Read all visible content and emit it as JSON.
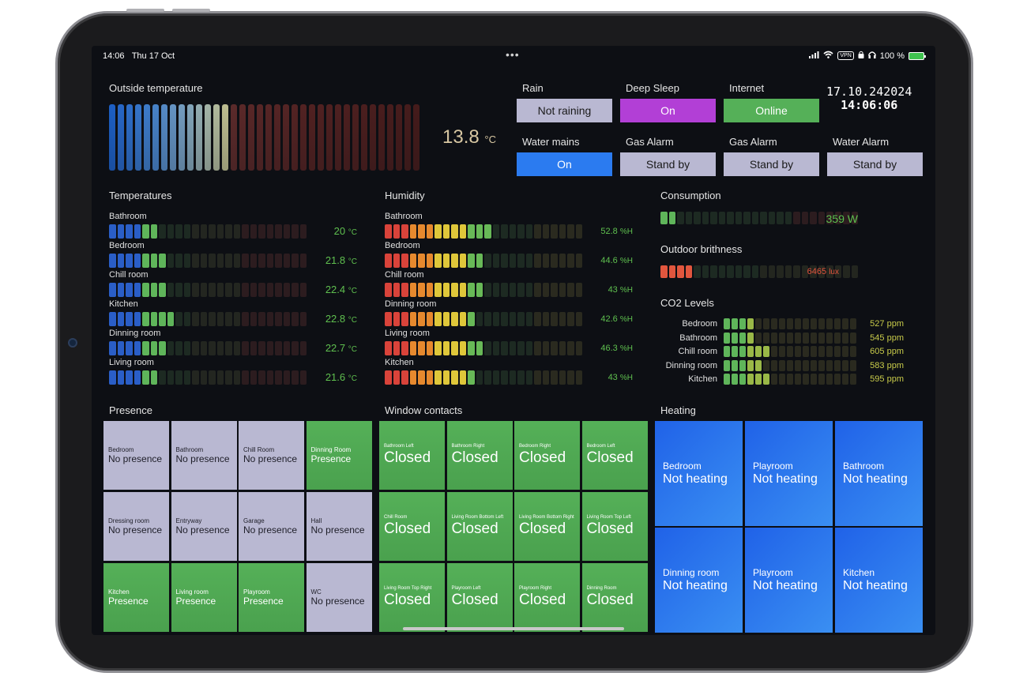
{
  "status_bar": {
    "time": "14:06",
    "date": "Thu 17 Oct",
    "dots": "•••",
    "vpn": "VPN",
    "battery": "100 %"
  },
  "outside": {
    "title": "Outside temperature",
    "value": "13.8",
    "unit": "°C"
  },
  "clock": {
    "date": "17.10.242024",
    "time": "14:06:06"
  },
  "status_tiles": [
    {
      "label": "Rain",
      "value": "Not raining",
      "color": "#b9b8d2"
    },
    {
      "label": "Deep Sleep",
      "value": "On",
      "color": "#b23fd6"
    },
    {
      "label": "Internet",
      "value": "Online",
      "color": "#55b058"
    },
    {
      "label": "Water mains",
      "value": "On",
      "color": "#2b7bf0"
    },
    {
      "label": "Gas Alarm",
      "value": "Stand by",
      "color": "#b9b8d2"
    },
    {
      "label": "Gas Alarm",
      "value": "Stand by",
      "color": "#b9b8d2"
    },
    {
      "label": "Water Alarm",
      "value": "Stand by",
      "color": "#b9b8d2"
    }
  ],
  "temperatures": {
    "title": "Temperatures",
    "unit": "°C",
    "rows": [
      {
        "name": "Bathroom",
        "value": "20"
      },
      {
        "name": "Bedroom",
        "value": "21.8"
      },
      {
        "name": "Chill room",
        "value": "22.4"
      },
      {
        "name": "Kitchen",
        "value": "22.8"
      },
      {
        "name": "Dinning room",
        "value": "22.7"
      },
      {
        "name": "Living room",
        "value": "21.6"
      }
    ]
  },
  "humidity": {
    "title": "Humidity",
    "unit": "%H",
    "rows": [
      {
        "name": "Bathroom",
        "value": "52.8"
      },
      {
        "name": "Bedroom",
        "value": "44.6"
      },
      {
        "name": "Chill room",
        "value": "43"
      },
      {
        "name": "Dinning room",
        "value": "42.6"
      },
      {
        "name": "Living room",
        "value": "46.3"
      },
      {
        "name": "Kitchen",
        "value": "43"
      }
    ]
  },
  "consumption": {
    "title": "Consumption",
    "value": "359",
    "unit": "W"
  },
  "brightness": {
    "title": "Outdoor brithness",
    "value": "6465",
    "unit": "lux"
  },
  "co2": {
    "title": "CO2 Levels",
    "unit": "ppm",
    "rows": [
      {
        "name": "Bedroom",
        "value": "527"
      },
      {
        "name": "Bathroom",
        "value": "545"
      },
      {
        "name": "Chill room",
        "value": "605"
      },
      {
        "name": "Dinning room",
        "value": "583"
      },
      {
        "name": "Kitchen",
        "value": "595"
      }
    ]
  },
  "presence": {
    "title": "Presence",
    "tiles": [
      {
        "room": "Bedroom",
        "state": "No presence",
        "active": false
      },
      {
        "room": "Bathroom",
        "state": "No presence",
        "active": false
      },
      {
        "room": "Chill Room",
        "state": "No presence",
        "active": false
      },
      {
        "room": "Dinning Room",
        "state": "Presence",
        "active": true
      },
      {
        "room": "Dressing room",
        "state": "No presence",
        "active": false
      },
      {
        "room": "Entryway",
        "state": "No presence",
        "active": false
      },
      {
        "room": "Garage",
        "state": "No presence",
        "active": false
      },
      {
        "room": "Hall",
        "state": "No presence",
        "active": false
      },
      {
        "room": "Kitchen",
        "state": "Presence",
        "active": true
      },
      {
        "room": "Living room",
        "state": "Presence",
        "active": true
      },
      {
        "room": "Playroom",
        "state": "Presence",
        "active": true
      },
      {
        "room": "WC",
        "state": "No presence",
        "active": false
      }
    ]
  },
  "windows": {
    "title": "Window contacts",
    "tiles": [
      {
        "name": "Bathroom Left",
        "state": "Closed"
      },
      {
        "name": "Bathroom Right",
        "state": "Closed"
      },
      {
        "name": "Bedroom Right",
        "state": "Closed"
      },
      {
        "name": "Bedroom Left",
        "state": "Closed"
      },
      {
        "name": "Chill Room",
        "state": "Closed"
      },
      {
        "name": "Living Room Bottom Left",
        "state": "Closed"
      },
      {
        "name": "Living Room Bottom Right",
        "state": "Closed"
      },
      {
        "name": "Living Room Top Left",
        "state": "Closed"
      },
      {
        "name": "Living Room Top Right",
        "state": "Closed"
      },
      {
        "name": "Playroom Left",
        "state": "Closed"
      },
      {
        "name": "Playroom Right",
        "state": "Closed"
      },
      {
        "name": "Dinning Room",
        "state": "Closed"
      }
    ]
  },
  "heating": {
    "title": "Heating",
    "tiles": [
      {
        "room": "Bedroom",
        "state": "Not heating"
      },
      {
        "room": "Playroom",
        "state": "Not heating"
      },
      {
        "room": "Bathroom",
        "state": "Not heating"
      },
      {
        "room": "Dinning room",
        "state": "Not heating"
      },
      {
        "room": "Playroom",
        "state": "Not heating"
      },
      {
        "room": "Kitchen",
        "state": "Not heating"
      }
    ]
  }
}
